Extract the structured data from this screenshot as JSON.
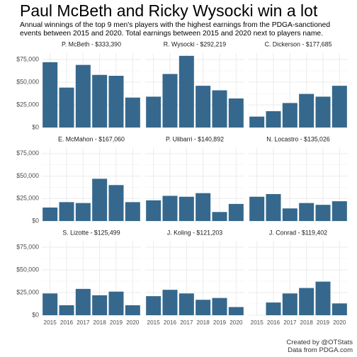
{
  "title": "Paul McBeth and Ricky Wysocki win a lot",
  "subtitle": "Annual winnings of the top 9 men's players with the highest earnings from the PDGA-sanctioned events between 2015 and 2020. Total earnings between 2015 and 2020 next to players name.",
  "caption": {
    "line1": "Created by @OTStats",
    "line2": "Data from PDGA.com"
  },
  "colors": {
    "bar": "#35688c",
    "panel": "#ffffff",
    "grid": "#ebebeb"
  },
  "chart_data": {
    "type": "bar",
    "layout": "facet-grid-3x3",
    "categories": [
      "2015",
      "2016",
      "2017",
      "2018",
      "2019",
      "2020"
    ],
    "y_ticks": [
      "$0",
      "$25,000",
      "$50,000",
      "$75,000"
    ],
    "y_tick_values": [
      0,
      25000,
      50000,
      75000
    ],
    "ylim": [
      0,
      82000
    ],
    "grid": true,
    "facets": [
      {
        "label": "P. McBeth - $333,390",
        "values": [
          72000,
          44000,
          69000,
          58000,
          57000,
          33000
        ]
      },
      {
        "label": "R. Wysocki - $292,219",
        "values": [
          34000,
          59000,
          79000,
          46000,
          41000,
          32000
        ]
      },
      {
        "label": "C. Dickerson - $177,685",
        "values": [
          12000,
          18000,
          27000,
          37000,
          34000,
          46000
        ]
      },
      {
        "label": "E. McMahon - $167,060",
        "values": [
          15000,
          21000,
          20000,
          47000,
          40000,
          21000
        ]
      },
      {
        "label": "P. Ulibarri - $140,892",
        "values": [
          23000,
          28000,
          27000,
          31000,
          10000,
          19000
        ]
      },
      {
        "label": "N. Locastro - $135,026",
        "values": [
          27000,
          30000,
          14000,
          20000,
          18000,
          22000
        ]
      },
      {
        "label": "S. Lizotte - $125,499",
        "values": [
          24000,
          11000,
          29000,
          22000,
          26000,
          11000
        ]
      },
      {
        "label": "J. Koling - $121,203",
        "values": [
          21000,
          28000,
          24000,
          17000,
          19000,
          9000
        ]
      },
      {
        "label": "J. Conrad - $119,402",
        "values": [
          0,
          14000,
          24000,
          30000,
          37000,
          13000
        ]
      }
    ]
  }
}
